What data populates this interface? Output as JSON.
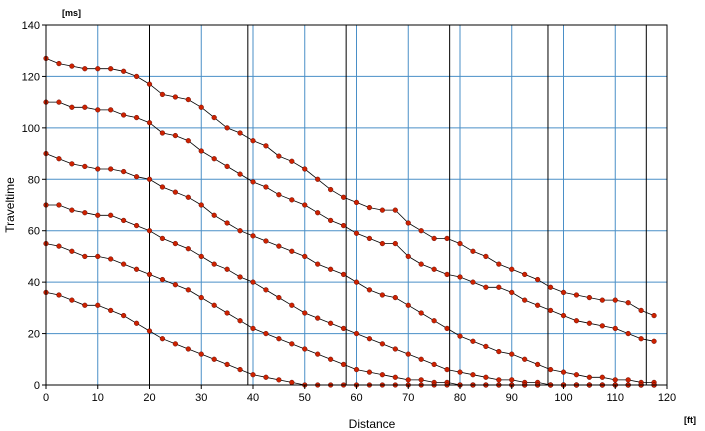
{
  "chart_data": {
    "type": "scatter",
    "xlabel": "Distance",
    "ylabel": "Traveltime",
    "x_unit": "[ft]",
    "y_unit": "[ms]",
    "xlim": [
      0,
      120
    ],
    "ylim": [
      0,
      140
    ],
    "x_ticks": [
      0,
      10,
      20,
      30,
      40,
      50,
      60,
      70,
      80,
      90,
      100,
      110,
      120
    ],
    "y_ticks": [
      0,
      20,
      40,
      60,
      80,
      100,
      120,
      140
    ],
    "grid": true,
    "shot_positions": [
      0,
      20,
      39,
      58,
      78,
      97,
      116
    ],
    "colors": {
      "grid": "#4a8fc7",
      "shot_line": "#000000",
      "point": "#cc2200",
      "curve": "#000000",
      "frame": "#000000"
    },
    "series": [
      {
        "values": [
          [
            0,
            127
          ],
          [
            2.5,
            125
          ],
          [
            5,
            124
          ],
          [
            7.5,
            123
          ],
          [
            10,
            123
          ],
          [
            12.5,
            123
          ],
          [
            15,
            122
          ],
          [
            17.5,
            120
          ],
          [
            20,
            117
          ],
          [
            22.5,
            113
          ],
          [
            25,
            112
          ],
          [
            27.5,
            111
          ],
          [
            30,
            108
          ],
          [
            32.5,
            104
          ],
          [
            35,
            100
          ],
          [
            37.5,
            98
          ],
          [
            40,
            95
          ],
          [
            42.5,
            93
          ],
          [
            45,
            89
          ],
          [
            47.5,
            87
          ],
          [
            50,
            84
          ],
          [
            52.5,
            80
          ],
          [
            55,
            76
          ],
          [
            57.5,
            73
          ],
          [
            60,
            71
          ],
          [
            62.5,
            69
          ],
          [
            65,
            68
          ],
          [
            67.5,
            68
          ],
          [
            70,
            63
          ],
          [
            72.5,
            60
          ],
          [
            75,
            57
          ],
          [
            77.5,
            57
          ],
          [
            80,
            55
          ],
          [
            82.5,
            52
          ],
          [
            85,
            50
          ],
          [
            87.5,
            47
          ],
          [
            90,
            45
          ],
          [
            92.5,
            43
          ],
          [
            95,
            41
          ],
          [
            97.5,
            38
          ],
          [
            100,
            36
          ],
          [
            102.5,
            35
          ],
          [
            105,
            34
          ],
          [
            107.5,
            33
          ],
          [
            110,
            33
          ],
          [
            112.5,
            32
          ],
          [
            115,
            29
          ],
          [
            117.5,
            27
          ]
        ]
      },
      {
        "values": [
          [
            0,
            110
          ],
          [
            2.5,
            110
          ],
          [
            5,
            108
          ],
          [
            7.5,
            108
          ],
          [
            10,
            107
          ],
          [
            12.5,
            107
          ],
          [
            15,
            105
          ],
          [
            17.5,
            104
          ],
          [
            20,
            102
          ],
          [
            22.5,
            98
          ],
          [
            25,
            97
          ],
          [
            27.5,
            95
          ],
          [
            30,
            91
          ],
          [
            32.5,
            88
          ],
          [
            35,
            85
          ],
          [
            37.5,
            82
          ],
          [
            40,
            79
          ],
          [
            42.5,
            77
          ],
          [
            45,
            74
          ],
          [
            47.5,
            72
          ],
          [
            50,
            70
          ],
          [
            52.5,
            67
          ],
          [
            55,
            64
          ],
          [
            57.5,
            62
          ],
          [
            60,
            59
          ],
          [
            62.5,
            57
          ],
          [
            65,
            55
          ],
          [
            67.5,
            55
          ],
          [
            70,
            50
          ],
          [
            72.5,
            47
          ],
          [
            75,
            45
          ],
          [
            77.5,
            43
          ],
          [
            80,
            42
          ],
          [
            82.5,
            40
          ],
          [
            85,
            38
          ],
          [
            87.5,
            38
          ],
          [
            90,
            36
          ],
          [
            92.5,
            33
          ],
          [
            95,
            31
          ],
          [
            97.5,
            29
          ],
          [
            100,
            27
          ],
          [
            102.5,
            25
          ],
          [
            105,
            24
          ],
          [
            107.5,
            23
          ],
          [
            110,
            22
          ],
          [
            112.5,
            20
          ],
          [
            115,
            18
          ],
          [
            117.5,
            17
          ]
        ]
      },
      {
        "values": [
          [
            0,
            90
          ],
          [
            2.5,
            88
          ],
          [
            5,
            86
          ],
          [
            7.5,
            85
          ],
          [
            10,
            84
          ],
          [
            12.5,
            84
          ],
          [
            15,
            83
          ],
          [
            17.5,
            81
          ],
          [
            20,
            80
          ],
          [
            22.5,
            77
          ],
          [
            25,
            75
          ],
          [
            27.5,
            73
          ],
          [
            30,
            70
          ],
          [
            32.5,
            66
          ],
          [
            35,
            63
          ],
          [
            37.5,
            60
          ],
          [
            40,
            58
          ],
          [
            42.5,
            56
          ],
          [
            45,
            54
          ],
          [
            47.5,
            52
          ],
          [
            50,
            50
          ],
          [
            52.5,
            47
          ],
          [
            55,
            45
          ],
          [
            57.5,
            43
          ],
          [
            60,
            40
          ],
          [
            62.5,
            37
          ],
          [
            65,
            35
          ],
          [
            67.5,
            34
          ],
          [
            70,
            31
          ],
          [
            72.5,
            28
          ],
          [
            75,
            25
          ],
          [
            77.5,
            22
          ],
          [
            80,
            19
          ],
          [
            82.5,
            17
          ],
          [
            85,
            15
          ],
          [
            87.5,
            13
          ],
          [
            90,
            12
          ],
          [
            92.5,
            10
          ],
          [
            95,
            8
          ],
          [
            97.5,
            6
          ],
          [
            100,
            5
          ],
          [
            102.5,
            4
          ],
          [
            105,
            3
          ],
          [
            107.5,
            3
          ],
          [
            110,
            2
          ],
          [
            112.5,
            2
          ],
          [
            115,
            1
          ],
          [
            117.5,
            1
          ]
        ]
      },
      {
        "values": [
          [
            0,
            70
          ],
          [
            2.5,
            70
          ],
          [
            5,
            68
          ],
          [
            7.5,
            67
          ],
          [
            10,
            66
          ],
          [
            12.5,
            66
          ],
          [
            15,
            64
          ],
          [
            17.5,
            62
          ],
          [
            20,
            60
          ],
          [
            22.5,
            57
          ],
          [
            25,
            55
          ],
          [
            27.5,
            53
          ],
          [
            30,
            50
          ],
          [
            32.5,
            47
          ],
          [
            35,
            45
          ],
          [
            37.5,
            42
          ],
          [
            40,
            40
          ],
          [
            42.5,
            37
          ],
          [
            45,
            34
          ],
          [
            47.5,
            31
          ],
          [
            50,
            28
          ],
          [
            52.5,
            26
          ],
          [
            55,
            24
          ],
          [
            57.5,
            22
          ],
          [
            60,
            20
          ],
          [
            62.5,
            18
          ],
          [
            65,
            16
          ],
          [
            67.5,
            14
          ],
          [
            70,
            12
          ],
          [
            72.5,
            10
          ],
          [
            75,
            8
          ],
          [
            77.5,
            6
          ],
          [
            80,
            5
          ],
          [
            82.5,
            4
          ],
          [
            85,
            3
          ],
          [
            87.5,
            2
          ],
          [
            90,
            2
          ],
          [
            92.5,
            1
          ],
          [
            95,
            1
          ],
          [
            97.5,
            0
          ],
          [
            100,
            0
          ],
          [
            102.5,
            0
          ],
          [
            105,
            0
          ],
          [
            107.5,
            0
          ],
          [
            110,
            0
          ],
          [
            112.5,
            0
          ],
          [
            115,
            0
          ],
          [
            117.5,
            0
          ]
        ]
      },
      {
        "values": [
          [
            0,
            55
          ],
          [
            2.5,
            54
          ],
          [
            5,
            52
          ],
          [
            7.5,
            50
          ],
          [
            10,
            50
          ],
          [
            12.5,
            49
          ],
          [
            15,
            47
          ],
          [
            17.5,
            45
          ],
          [
            20,
            43
          ],
          [
            22.5,
            41
          ],
          [
            25,
            39
          ],
          [
            27.5,
            37
          ],
          [
            30,
            34
          ],
          [
            32.5,
            31
          ],
          [
            35,
            28
          ],
          [
            37.5,
            25
          ],
          [
            40,
            22
          ],
          [
            42.5,
            20
          ],
          [
            45,
            18
          ],
          [
            47.5,
            16
          ],
          [
            50,
            14
          ],
          [
            52.5,
            12
          ],
          [
            55,
            10
          ],
          [
            57.5,
            8
          ],
          [
            60,
            6
          ],
          [
            62.5,
            5
          ],
          [
            65,
            4
          ],
          [
            67.5,
            3
          ],
          [
            70,
            2
          ],
          [
            72.5,
            2
          ],
          [
            75,
            1
          ],
          [
            77.5,
            1
          ],
          [
            80,
            0
          ],
          [
            82.5,
            0
          ],
          [
            85,
            0
          ],
          [
            87.5,
            0
          ],
          [
            90,
            0
          ],
          [
            92.5,
            0
          ],
          [
            95,
            0
          ],
          [
            97.5,
            0
          ],
          [
            100,
            0
          ],
          [
            102.5,
            0
          ],
          [
            105,
            0
          ],
          [
            107.5,
            0
          ],
          [
            110,
            0
          ],
          [
            112.5,
            0
          ],
          [
            115,
            0
          ],
          [
            117.5,
            0
          ]
        ]
      },
      {
        "values": [
          [
            0,
            36
          ],
          [
            2.5,
            35
          ],
          [
            5,
            33
          ],
          [
            7.5,
            31
          ],
          [
            10,
            31
          ],
          [
            12.5,
            29
          ],
          [
            15,
            27
          ],
          [
            17.5,
            24
          ],
          [
            20,
            21
          ],
          [
            22.5,
            18
          ],
          [
            25,
            16
          ],
          [
            27.5,
            14
          ],
          [
            30,
            12
          ],
          [
            32.5,
            10
          ],
          [
            35,
            8
          ],
          [
            37.5,
            6
          ],
          [
            40,
            4
          ],
          [
            42.5,
            3
          ],
          [
            45,
            2
          ],
          [
            47.5,
            1
          ],
          [
            50,
            0
          ],
          [
            52.5,
            0
          ],
          [
            55,
            0
          ],
          [
            57.5,
            0
          ],
          [
            60,
            0
          ],
          [
            62.5,
            0
          ],
          [
            65,
            0
          ],
          [
            67.5,
            0
          ],
          [
            70,
            0
          ],
          [
            72.5,
            0
          ],
          [
            75,
            0
          ],
          [
            77.5,
            0
          ],
          [
            80,
            0
          ],
          [
            82.5,
            0
          ],
          [
            85,
            0
          ],
          [
            87.5,
            0
          ],
          [
            90,
            0
          ],
          [
            92.5,
            0
          ],
          [
            95,
            0
          ],
          [
            97.5,
            0
          ],
          [
            100,
            0
          ],
          [
            102.5,
            0
          ],
          [
            105,
            0
          ],
          [
            107.5,
            0
          ],
          [
            110,
            0
          ],
          [
            112.5,
            0
          ],
          [
            115,
            0
          ],
          [
            117.5,
            0
          ]
        ]
      }
    ]
  }
}
